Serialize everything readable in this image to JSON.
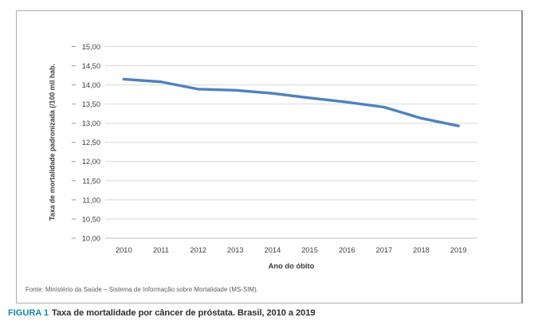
{
  "figure": {
    "caption_label": "FIGURA 1",
    "caption_text": "Taxa de mortalidade por câncer de próstata. Brasil, 2010 a 2019",
    "fonte": "Fonte: Ministério da Saúde – Sistema de Informação sobre Mortalidade (MS-SIM).",
    "accent_color": "#1987a8"
  },
  "chart_data": {
    "type": "line",
    "title": "",
    "categories": [
      "2010",
      "2011",
      "2012",
      "2013",
      "2014",
      "2015",
      "2016",
      "2017",
      "2018",
      "2019"
    ],
    "series": [
      {
        "name": "Taxa de mortalidade padronizada",
        "values": [
          14.15,
          14.08,
          13.89,
          13.86,
          13.78,
          13.66,
          13.55,
          13.42,
          13.13,
          12.93
        ],
        "color": "#4f81bd"
      }
    ],
    "xlabel": "Ano do óbito",
    "ylabel": "Taxa de mortalidade padronizada (/100 mil hab.",
    "ylim": [
      10,
      15
    ],
    "ystep": 0.5,
    "y_tick_labels": [
      "15,00",
      "14,50",
      "14,00",
      "13,50",
      "13,00",
      "12,50",
      "12,00",
      "11,50",
      "11,00",
      "10,50",
      "10,00"
    ],
    "grid": true,
    "gridline_color": "#d9d9d9",
    "axis_line_color": "#bfbfbf",
    "tick_mark_color": "#9a9a9a",
    "legend": "none"
  }
}
